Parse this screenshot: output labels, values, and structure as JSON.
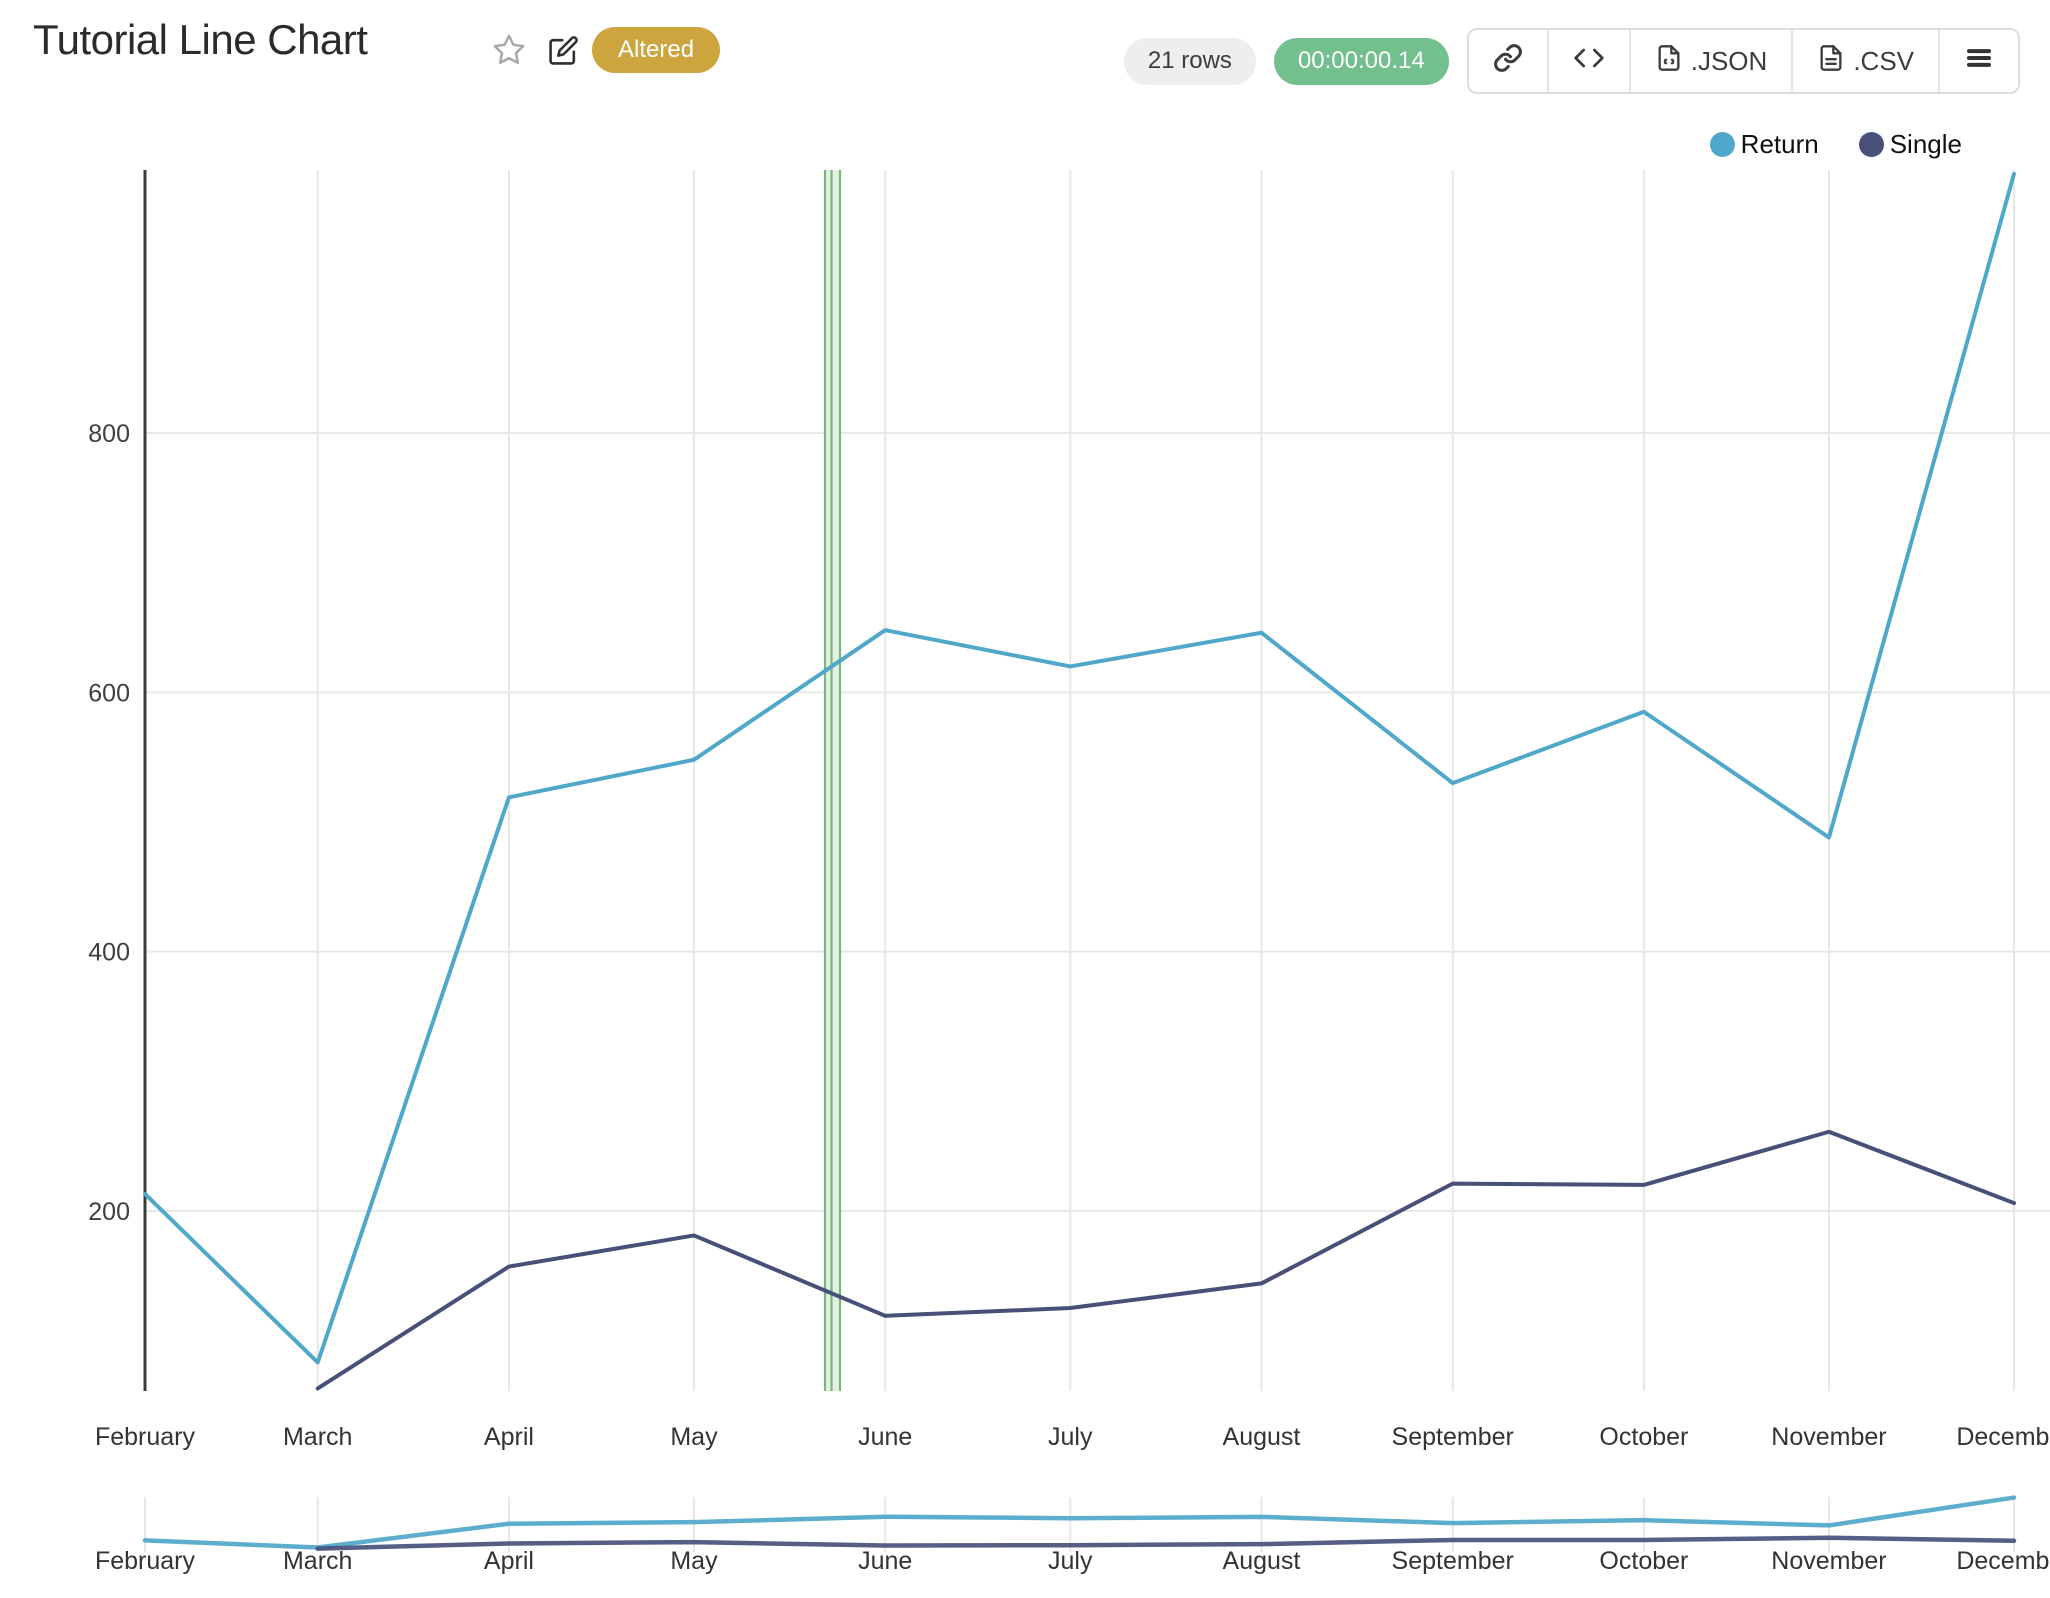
{
  "header": {
    "title": "Tutorial Line Chart",
    "badge_label": "Altered",
    "badge_color": "#cda53e"
  },
  "toolbar": {
    "rows_label": "21 rows",
    "duration_label": "00:00:00.14",
    "duration_color": "#73bf8e",
    "json_label": ".JSON",
    "csv_label": ".CSV"
  },
  "legend": {
    "items": [
      {
        "label": "Return",
        "color": "#4fa7c9"
      },
      {
        "label": "Single",
        "color": "#465079"
      }
    ]
  },
  "chart_data": {
    "type": "line",
    "title": "Tutorial Line Chart",
    "x": [
      "February",
      "March",
      "April",
      "May",
      "June",
      "July",
      "August",
      "September",
      "October",
      "November",
      "December"
    ],
    "day_offsets": [
      0,
      28,
      59,
      89,
      120,
      150,
      181,
      212,
      243,
      273,
      303
    ],
    "series": [
      {
        "name": "Return",
        "color": "#4fa7c9",
        "values": [
          213,
          83,
          519,
          548,
          648,
          620,
          646,
          530,
          585,
          488,
          1000
        ]
      },
      {
        "name": "Single",
        "color": "#465079",
        "values": [
          null,
          63,
          157,
          181,
          119,
          125,
          144,
          221,
          220,
          261,
          206
        ]
      }
    ],
    "yticks": [
      200,
      400,
      600,
      800
    ],
    "ylim": [
      61,
      1003
    ],
    "grid": true,
    "legend_position": "top-right",
    "axis_color": "#3b3b3b",
    "grid_color": "#e7e7e7",
    "tick_color": "#3f3f3f",
    "highlight_band": {
      "frac_start": 0.3633,
      "frac_end": 0.3724,
      "border_color": "#74b97a",
      "fill_color": "#e4f0e4"
    },
    "minimap": {
      "ylim": [
        0,
        1010
      ]
    }
  }
}
